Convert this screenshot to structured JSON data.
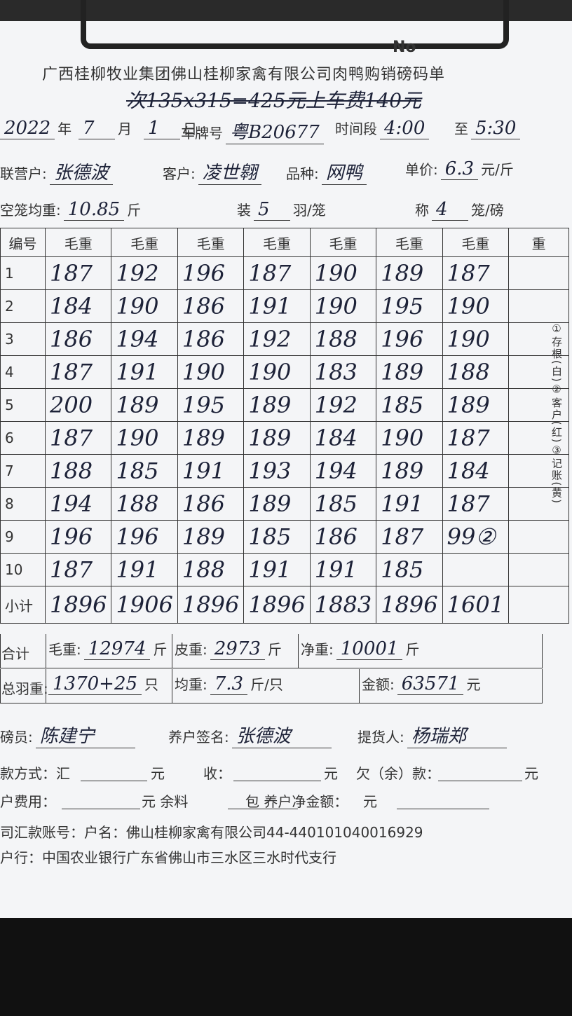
{
  "header": {
    "no": "No",
    "title": "广西桂柳牧业集团佛山桂柳家禽有限公司肉鸭购销磅码单",
    "note": "次135x315=425元上车费140元"
  },
  "info": {
    "rows": [
      [
        {
          "value": "2022",
          "unit": "年"
        },
        {
          "value": "7",
          "unit": "月"
        },
        {
          "value": "1",
          "unit": "日"
        },
        {
          "label": "车牌号",
          "value": "粤B20677"
        },
        {
          "label": "时间段",
          "value": "4:00"
        },
        {
          "label": "至",
          "value": "5:30"
        }
      ],
      [
        {
          "label": "联营户:",
          "value": "张德波"
        },
        {
          "label": "客户:",
          "value": "凌世翱"
        },
        {
          "label": "品种:",
          "value": "网鸭"
        },
        {
          "label": "单价:",
          "value": "6.3",
          "unit": "元/斤"
        }
      ],
      [
        {
          "label": "空笼均重:",
          "value": "10.85",
          "unit": "斤"
        },
        {
          "label": "装",
          "value": "5",
          "unit": "羽/笼"
        },
        {
          "label": "称",
          "value": "4",
          "unit": "笼/磅"
        }
      ]
    ]
  },
  "table": {
    "header": [
      "编号",
      "毛重",
      "毛重",
      "毛重",
      "毛重",
      "毛重",
      "毛重",
      "毛重",
      "重"
    ],
    "rows": [
      [
        "1",
        "187",
        "192",
        "196",
        "187",
        "190",
        "189",
        "187",
        null
      ],
      [
        "2",
        "184",
        "190",
        "186",
        "191",
        "190",
        "195",
        "190",
        null
      ],
      [
        "3",
        "186",
        "194",
        "186",
        "192",
        "188",
        "196",
        "190",
        null
      ],
      [
        "4",
        "187",
        "191",
        "190",
        "190",
        "183",
        "189",
        "188",
        null
      ],
      [
        "5",
        "200",
        "189",
        "195",
        "189",
        "192",
        "185",
        "189",
        null
      ],
      [
        "6",
        "187",
        "190",
        "189",
        "189",
        "184",
        "190",
        "187",
        null
      ],
      [
        "7",
        "188",
        "185",
        "191",
        "193",
        "194",
        "189",
        "184",
        null
      ],
      [
        "8",
        "194",
        "188",
        "186",
        "189",
        "185",
        "191",
        "187",
        null
      ],
      [
        "9",
        "196",
        "196",
        "189",
        "185",
        "186",
        "187",
        "99②",
        null
      ],
      [
        "10",
        "187",
        "191",
        "188",
        "191",
        "191",
        "185",
        null,
        null
      ],
      [
        "小计",
        "1896",
        "1906",
        "1896",
        "1896",
        "1883",
        "1896",
        "1601",
        null
      ]
    ]
  },
  "totals": {
    "rows": [
      {
        "title": "合计",
        "cells": [
          {
            "label": "毛重:",
            "value": "12974",
            "unit": "斤"
          },
          {
            "label": "皮重:",
            "value": "2973",
            "unit": "斤"
          },
          {
            "label": "净重:",
            "value": "10001",
            "unit": "斤"
          }
        ]
      },
      {
        "title": "总羽重:",
        "cells": [
          {
            "value": "1370+25",
            "unit": "只"
          },
          {
            "label": "均重:",
            "value": "7.3",
            "unit": "斤/只"
          },
          {
            "label": "金额:",
            "value": "63571",
            "unit": "元"
          }
        ]
      }
    ]
  },
  "signatures": [
    {
      "label": "磅员:",
      "value": "陈建宁"
    },
    {
      "label": "养户签名:",
      "value": "张德波"
    },
    {
      "label": "提货人:",
      "value": "杨瑞郑"
    }
  ],
  "payment": [
    "款方式：汇",
    "元",
    "收：",
    "元",
    "欠（余）款：",
    "元"
  ],
  "fees": [
    "户费用：",
    "元 余料",
    "包 养户净金额：",
    "元"
  ],
  "account": "司汇款账号：户名：佛山桂柳家禽有限公司44-440101040016929",
  "bank": "户行：中国农业银行广东省佛山市三水区三水时代支行",
  "side": [
    "①存根(白)",
    "②客户(红)",
    "③记账(黄)"
  ]
}
